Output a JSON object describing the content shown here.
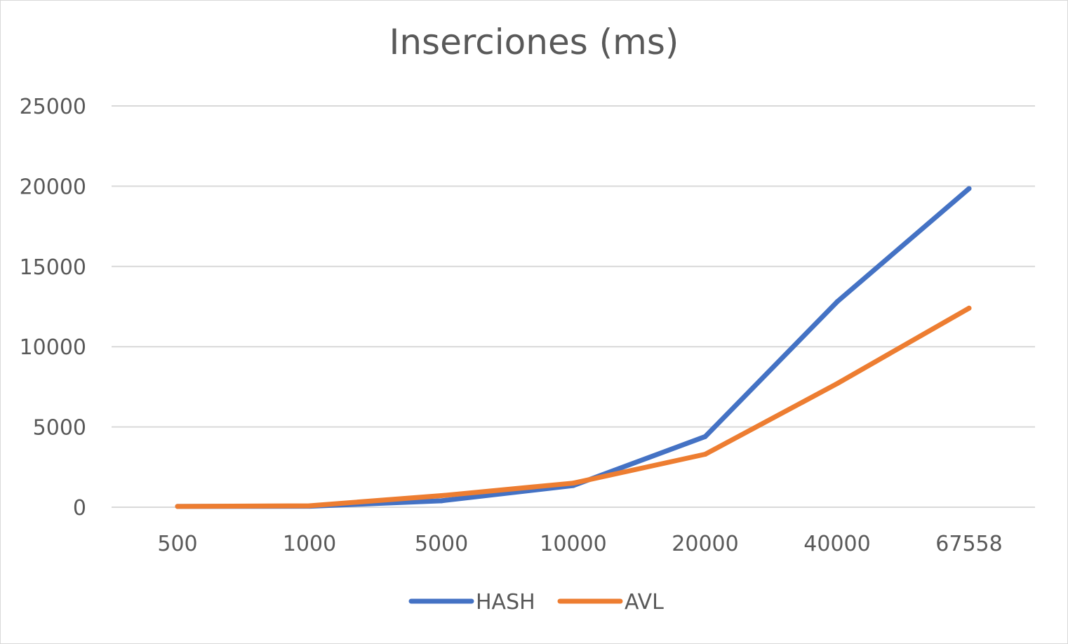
{
  "chart_data": {
    "type": "line",
    "title": "Inserciones (ms)",
    "categories": [
      "500",
      "1000",
      "5000",
      "10000",
      "20000",
      "40000",
      "67558"
    ],
    "series": [
      {
        "name": "HASH",
        "color": "#4472c4",
        "values": [
          50,
          60,
          400,
          1350,
          4400,
          12800,
          19850
        ]
      },
      {
        "name": "AVL",
        "color": "#ed7d31",
        "values": [
          50,
          90,
          720,
          1500,
          3300,
          7700,
          12400
        ]
      }
    ],
    "ylim": [
      0,
      25000
    ],
    "yticks": [
      0,
      5000,
      10000,
      15000,
      20000,
      25000
    ],
    "grid": true,
    "legend": "bottom-center"
  }
}
